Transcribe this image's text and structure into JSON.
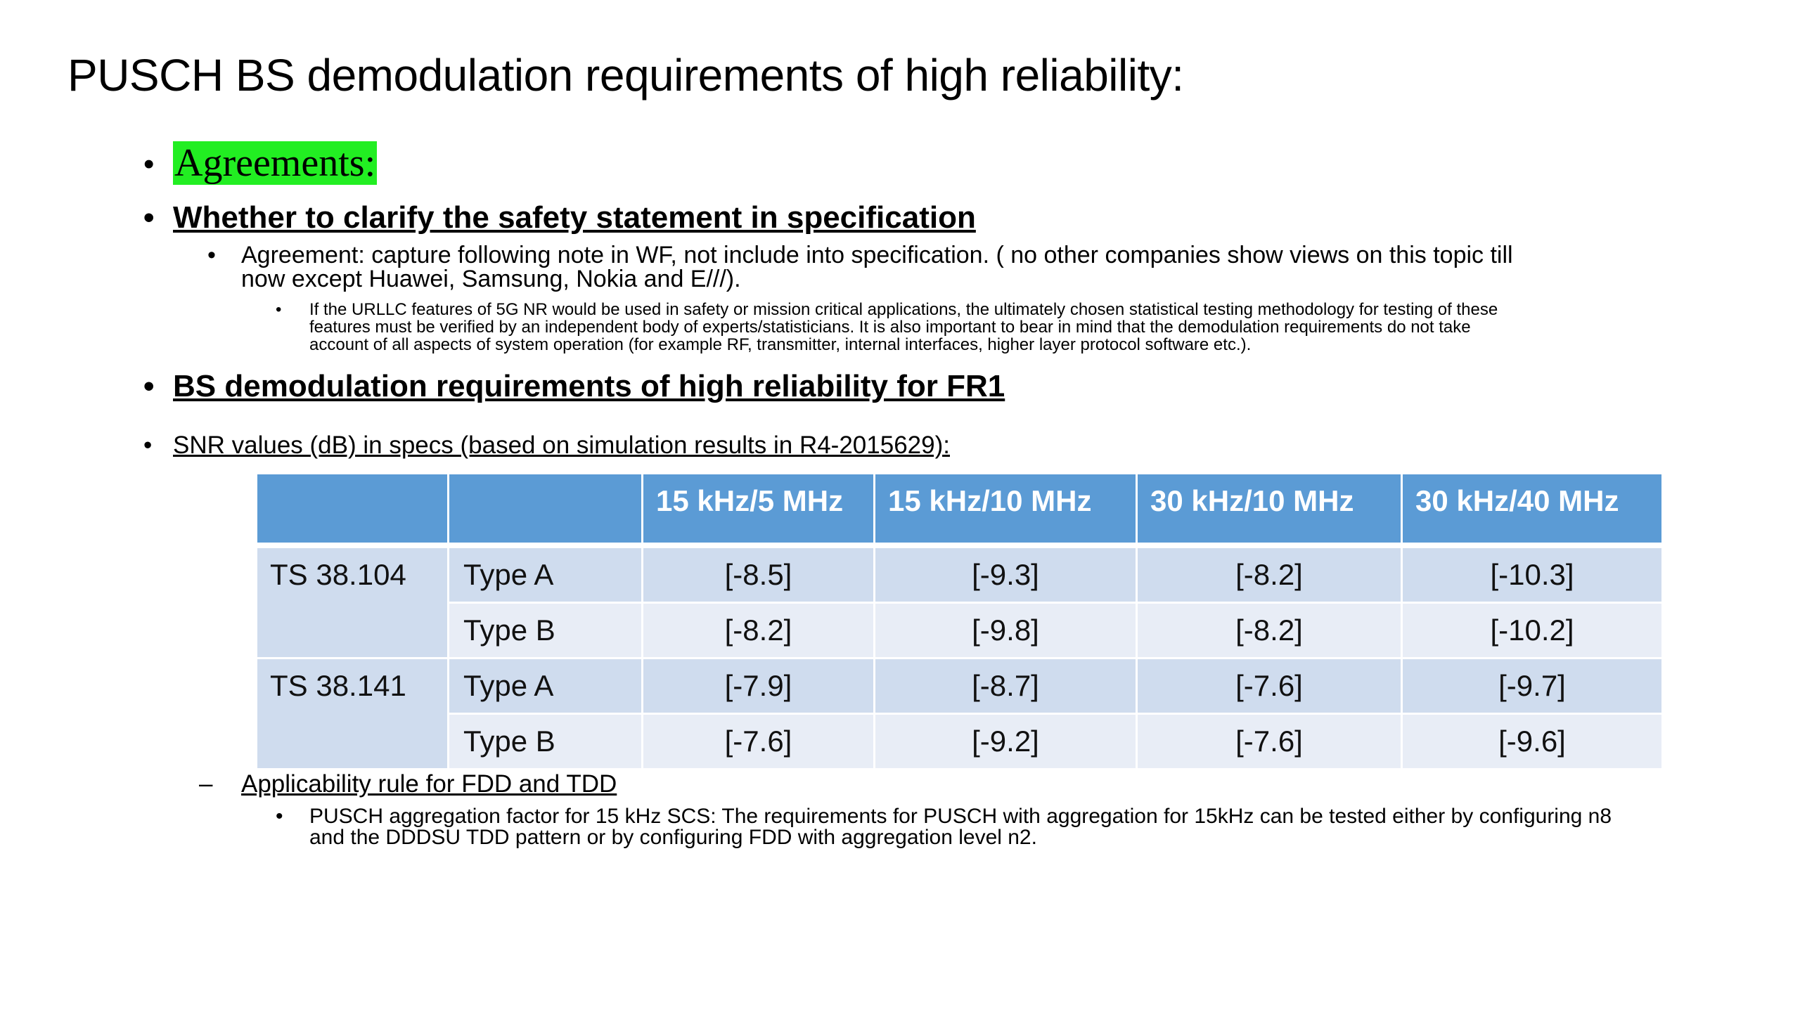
{
  "slide": {
    "title": "PUSCH BS demodulation requirements of high reliability:"
  },
  "bullets": {
    "bullet_char": "•",
    "sub_bullet_char": "•",
    "agreements_label": "Agreements:",
    "safety_heading": "Whether to clarify the safety statement in specification",
    "agreement_line1": "Agreement: capture following note in WF, not include into specification. ( no other companies show views on this topic till",
    "agreement_line2": "now except Huawei, Samsung, Nokia and E///).",
    "note_line1": "If the URLLC features of 5G NR would be used in safety or mission critical applications, the ultimately chosen statistical testing methodology for testing of these",
    "note_line2": "features must be verified by an independent body of experts/statisticians. It is also important to bear in mind that the demodulation requirements do not take",
    "note_line3": "account of all aspects of system operation (for example RF, transmitter, internal interfaces, higher layer protocol software etc.).",
    "fr1_heading": "BS demodulation requirements of high reliability for FR1",
    "snr_intro": "SNR values (dB) in specs (based on simulation results in R4-2015629):"
  },
  "table": {
    "headers": [
      "",
      "",
      "15 kHz/5 MHz",
      "15 kHz/10 MHz",
      "30 kHz/10 MHz",
      "30 kHz/40 MHz"
    ],
    "groups": [
      {
        "spec": "TS 38.104",
        "rows": [
          {
            "type": "Type A",
            "values": [
              "[-8.5]",
              "[-9.3]",
              "[-8.2]",
              "[-10.3]"
            ]
          },
          {
            "type": "Type B",
            "values": [
              "[-8.2]",
              "[-9.8]",
              "[-8.2]",
              "[-10.2]"
            ]
          }
        ]
      },
      {
        "spec": "TS 38.141",
        "rows": [
          {
            "type": "Type A",
            "values": [
              "[-7.9]",
              "[-8.7]",
              "[-7.6]",
              "[-9.7]"
            ]
          },
          {
            "type": "Type B",
            "values": [
              "[-7.6]",
              "[-9.2]",
              "[-7.6]",
              "[-9.6]"
            ]
          }
        ]
      }
    ]
  },
  "applicability": {
    "dash": "–",
    "label": "Applicability rule for FDD and TDD",
    "line1": "PUSCH aggregation factor for 15 kHz SCS: The requirements for PUSCH with aggregation for 15kHz can be tested either by configuring n8",
    "line2": "and the DDDSU TDD pattern or by configuring FDD with aggregation level n2."
  }
}
